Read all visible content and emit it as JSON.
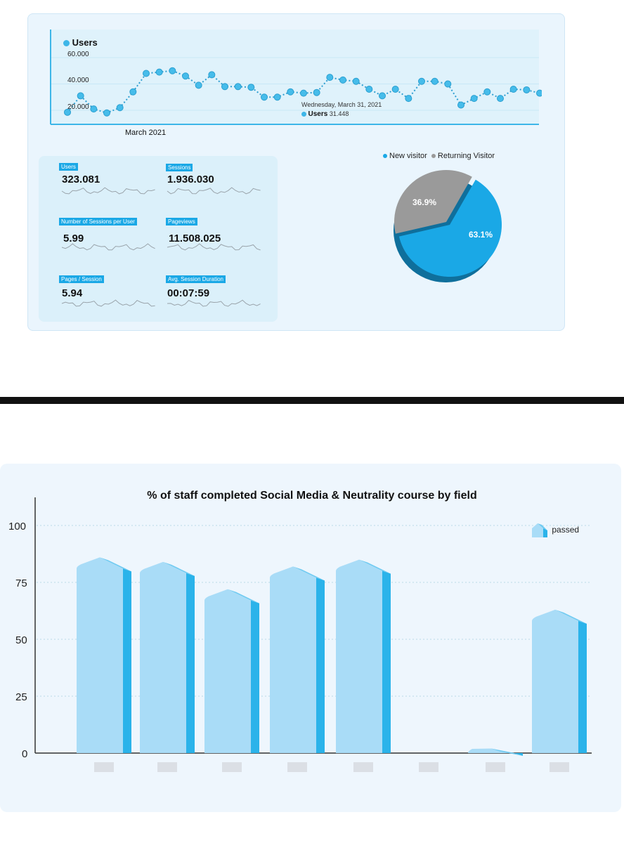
{
  "line_chart": {
    "legend": "Users",
    "y_ticks": [
      "60.000",
      "40.000",
      "20.000"
    ],
    "x_label": "March 2021",
    "tooltip": {
      "date": "Wednesday, March 31, 2021",
      "series": "Users",
      "value": "31.448"
    },
    "color": "#3db6e8"
  },
  "metrics": [
    {
      "label": "Users",
      "value": "323.081"
    },
    {
      "label": "Sessions",
      "value": "1.936.030"
    },
    {
      "label": "Number of Sessions per User",
      "value": "5.99"
    },
    {
      "label": "Pageviews",
      "value": "11.508.025"
    },
    {
      "label": "Pages / Session",
      "value": "5.94"
    },
    {
      "label": "Avg. Session Duration",
      "value": "00:07:59"
    }
  ],
  "pie": {
    "legend_new": "New visitor",
    "legend_returning": "Returning Visitor",
    "new_label": "63.1%",
    "returning_label": "36.9%",
    "colors": {
      "new": "#1aa8e6",
      "returning": "#9a9a9a"
    }
  },
  "bar_chart": {
    "title": "% of staff completed Social Media & Neutrality course by field",
    "legend": "passed",
    "y_ticks": [
      "100",
      "75",
      "50",
      "25",
      "0"
    ],
    "colors": {
      "front": "#a9dcf7",
      "side": "#2bb3ea",
      "top": "#6fcaf1"
    }
  },
  "chart_data": [
    {
      "type": "line",
      "title": "",
      "series": [
        {
          "name": "Users",
          "values": [
            18500,
            31000,
            21000,
            18000,
            22000,
            34000,
            48000,
            49000,
            50000,
            46000,
            39000,
            47000,
            38000,
            38000,
            37500,
            30000,
            30000,
            34000,
            33000,
            33500,
            45000,
            43000,
            42000,
            36000,
            31000,
            36000,
            29000,
            42000,
            42000,
            40000,
            24000,
            29000,
            34000,
            29000,
            36000,
            35500,
            33000
          ]
        }
      ],
      "xlabel": "March 2021",
      "ylim": [
        0,
        70000
      ],
      "y_ticks": [
        20000,
        40000,
        60000
      ]
    },
    {
      "type": "pie",
      "categories": [
        "New visitor",
        "Returning Visitor"
      ],
      "values": [
        63.1,
        36.9
      ]
    },
    {
      "type": "bar",
      "title": "% of staff completed Social Media & Neutrality course by field",
      "categories": [
        "",
        "",
        "",
        "",
        "",
        "",
        "",
        ""
      ],
      "series": [
        {
          "name": "passed",
          "values": [
            86,
            84,
            72,
            82,
            85,
            0,
            2,
            63
          ]
        }
      ],
      "ylim": [
        0,
        100
      ],
      "y_ticks": [
        0,
        25,
        50,
        75,
        100
      ]
    }
  ]
}
